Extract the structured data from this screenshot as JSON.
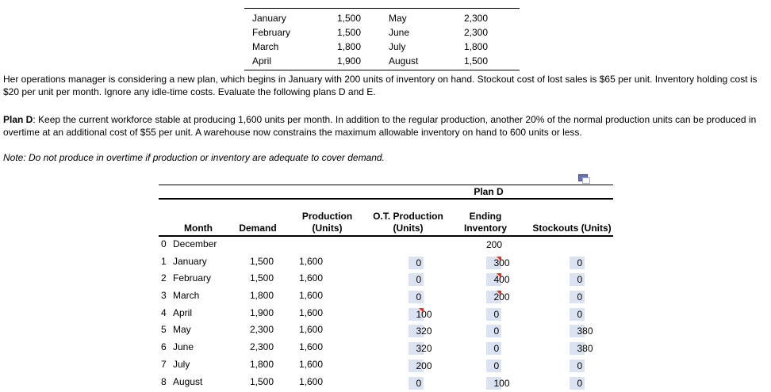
{
  "demand_summary": {
    "rows": [
      {
        "m1": "January",
        "v1": "1,500",
        "m2": "May",
        "v2": "2,300"
      },
      {
        "m1": "February",
        "v1": "1,500",
        "m2": "June",
        "v2": "2,300"
      },
      {
        "m1": "March",
        "v1": "1,800",
        "m2": "July",
        "v2": "1,800"
      },
      {
        "m1": "April",
        "v1": "1,900",
        "m2": "August",
        "v2": "1,500"
      }
    ]
  },
  "paragraphs": {
    "intro": "Her operations manager is considering a new plan, which begins in January with 200 units of inventory on hand. Stockout cost of lost sales is $65 per unit. Inventory holding cost is $20 per unit per month. Ignore any idle-time costs. Evaluate the following plans D and E.",
    "plan_d_label": "Plan D",
    "plan_d_rest": ": Keep the current workforce stable at producing 1,600 units per month. In addition to the regular production, another 20% of the normal production units can be produced in overtime at an additional cost of $55 per unit. A warehouse now constrains the maximum allowable inventory on hand to 600 units or less.",
    "note": "Note: Do not produce in overtime if production or inventory are adequate to cover demand."
  },
  "plan_table": {
    "title": "Plan D",
    "headers": {
      "month": "Month",
      "demand": "Demand",
      "production_l1": "Production",
      "production_l2": "(Units)",
      "ot_l1": "O.T. Production",
      "ot_l2": "(Units)",
      "ending_l1": "Ending",
      "ending_l2": "Inventory",
      "stockouts": "Stockouts (Units)"
    },
    "rows": [
      {
        "idx": "0",
        "month": "December",
        "demand": "",
        "production": "",
        "ot": "",
        "ending": "",
        "ending_plain": "200",
        "stockouts": ""
      },
      {
        "idx": "1",
        "month": "January",
        "demand": "1,500",
        "production": "1,600",
        "ot": "0",
        "ending": "300",
        "ending_flag": true,
        "stockouts": "0"
      },
      {
        "idx": "2",
        "month": "February",
        "demand": "1,500",
        "production": "1,600",
        "ot": "0",
        "ending": "400",
        "ending_flag": true,
        "stockouts": "0"
      },
      {
        "idx": "3",
        "month": "March",
        "demand": "1,800",
        "production": "1,600",
        "ot": "0",
        "ending": "200",
        "ending_flag": true,
        "stockouts": "0"
      },
      {
        "idx": "4",
        "month": "April",
        "demand": "1,900",
        "production": "1,600",
        "ot": "100",
        "ot_flag": true,
        "ending": "0",
        "stockouts": "0"
      },
      {
        "idx": "5",
        "month": "May",
        "demand": "2,300",
        "production": "1,600",
        "ot": "320",
        "ending": "0",
        "stockouts": "380"
      },
      {
        "idx": "6",
        "month": "June",
        "demand": "2,300",
        "production": "1,600",
        "ot": "320",
        "ending": "0",
        "stockouts": "380"
      },
      {
        "idx": "7",
        "month": "July",
        "demand": "1,800",
        "production": "1,600",
        "ot": "200",
        "ending": "0",
        "stockouts": "0"
      },
      {
        "idx": "8",
        "month": "August",
        "demand": "1,500",
        "production": "1,600",
        "ot": "0",
        "ending": "100",
        "stockouts": "0"
      }
    ]
  },
  "icons": {
    "copy": "copy-icon",
    "comment_flag": "comment-flag-icon"
  },
  "colors": {
    "answer_cell_fill": "#dbe2f1",
    "flag_red": "#e0301e",
    "icon_dark_blue": "#6b72b0",
    "icon_light_blue": "#9ea7d6",
    "line_black": "#000000"
  }
}
